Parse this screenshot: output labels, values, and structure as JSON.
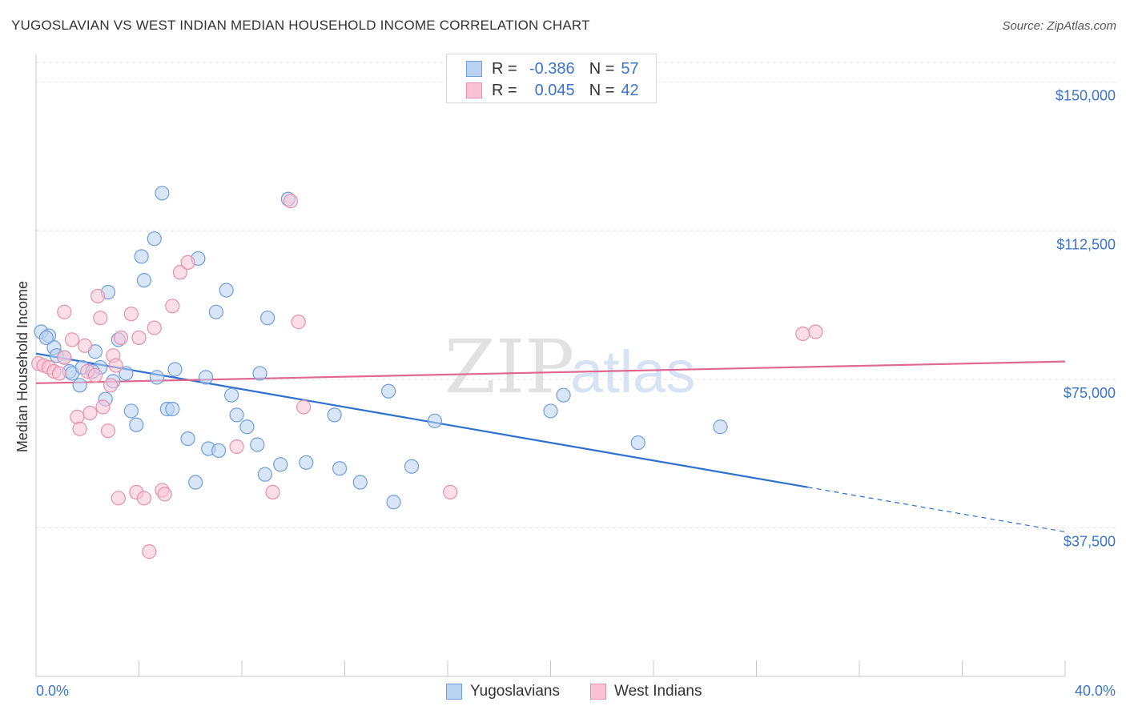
{
  "header": {
    "title": "YUGOSLAVIAN VS WEST INDIAN MEDIAN HOUSEHOLD INCOME CORRELATION CHART",
    "source": "Source: ZipAtlas.com"
  },
  "legend": {
    "rows": [
      {
        "r_label": "R =",
        "r_value": "-0.386",
        "n_label": "N =",
        "n_value": "57"
      },
      {
        "r_label": "R =",
        "r_value": "0.045",
        "n_label": "N =",
        "n_value": "42"
      }
    ]
  },
  "watermark": {
    "zip": "ZIP",
    "atlas": "atlas"
  },
  "colors": {
    "blue_fill": "#b9d1f2",
    "blue_stroke": "#6e9edc",
    "blue_line": "#2f6fce",
    "pink_fill": "#f9c3d3",
    "pink_stroke": "#e591ab",
    "pink_line": "#e0678f",
    "tick_label": "#3b74c9",
    "grid": "#e3e3e3"
  },
  "chart_data": {
    "type": "scatter",
    "title": "YUGOSLAVIAN VS WEST INDIAN MEDIAN HOUSEHOLD INCOME CORRELATION CHART",
    "xlabel": "",
    "ylabel": "Median Household Income",
    "xlim": [
      0,
      40
    ],
    "ylim": [
      0,
      155000
    ],
    "x_tick_labels": [
      "0.0%",
      "40.0%"
    ],
    "y_ticks": [
      37500,
      75000,
      112500,
      150000
    ],
    "y_tick_labels": [
      "$37,500",
      "$75,000",
      "$112,500",
      "$150,000"
    ],
    "grid": true,
    "legend_position": "top-center",
    "series": [
      {
        "name": "Yugoslavians",
        "color": "#6e9edc",
        "r": "-0.386",
        "n": "57",
        "points": [
          [
            0.2,
            87000
          ],
          [
            0.5,
            86000
          ],
          [
            0.7,
            83000
          ],
          [
            0.8,
            81000
          ],
          [
            1.3,
            77000
          ],
          [
            1.4,
            76500
          ],
          [
            1.8,
            78000
          ],
          [
            1.7,
            73500
          ],
          [
            2.3,
            82000
          ],
          [
            2.5,
            78000
          ],
          [
            2.7,
            70000
          ],
          [
            2.8,
            97000
          ],
          [
            3.0,
            74500
          ],
          [
            3.2,
            85000
          ],
          [
            3.5,
            76500
          ],
          [
            3.7,
            67000
          ],
          [
            3.9,
            63500
          ],
          [
            4.2,
            100000
          ],
          [
            4.1,
            106000
          ],
          [
            4.6,
            110500
          ],
          [
            4.7,
            75500
          ],
          [
            4.9,
            122000
          ],
          [
            5.1,
            67500
          ],
          [
            5.3,
            67500
          ],
          [
            5.4,
            77500
          ],
          [
            5.9,
            60000
          ],
          [
            6.2,
            49000
          ],
          [
            6.3,
            105500
          ],
          [
            6.6,
            75500
          ],
          [
            6.7,
            57500
          ],
          [
            7.0,
            92000
          ],
          [
            7.1,
            57000
          ],
          [
            7.4,
            97500
          ],
          [
            7.6,
            71000
          ],
          [
            7.8,
            66000
          ],
          [
            8.2,
            63000
          ],
          [
            8.6,
            58500
          ],
          [
            8.7,
            76500
          ],
          [
            8.9,
            51000
          ],
          [
            9.0,
            90500
          ],
          [
            9.5,
            53500
          ],
          [
            9.8,
            120500
          ],
          [
            10.5,
            54000
          ],
          [
            11.6,
            66000
          ],
          [
            11.8,
            52500
          ],
          [
            12.6,
            49000
          ],
          [
            13.7,
            72000
          ],
          [
            13.9,
            44000
          ],
          [
            14.6,
            53000
          ],
          [
            15.5,
            64500
          ],
          [
            20.0,
            67000
          ],
          [
            20.5,
            71000
          ],
          [
            23.4,
            59000
          ],
          [
            26.6,
            63000
          ],
          [
            0.4,
            85500
          ],
          [
            1.1,
            80500
          ],
          [
            2.2,
            77000
          ]
        ]
      },
      {
        "name": "West Indians",
        "color": "#e591ab",
        "r": "0.045",
        "n": "42",
        "points": [
          [
            0.1,
            79000
          ],
          [
            0.3,
            78500
          ],
          [
            0.5,
            78000
          ],
          [
            0.7,
            77000
          ],
          [
            0.9,
            76500
          ],
          [
            1.1,
            80500
          ],
          [
            1.1,
            92000
          ],
          [
            1.4,
            85000
          ],
          [
            1.6,
            65500
          ],
          [
            1.7,
            62500
          ],
          [
            1.9,
            83500
          ],
          [
            2.0,
            77000
          ],
          [
            2.1,
            66500
          ],
          [
            2.3,
            76000
          ],
          [
            2.4,
            96000
          ],
          [
            2.5,
            90500
          ],
          [
            2.6,
            68000
          ],
          [
            2.8,
            62000
          ],
          [
            2.9,
            73500
          ],
          [
            3.0,
            81000
          ],
          [
            3.1,
            78500
          ],
          [
            3.3,
            85500
          ],
          [
            3.2,
            45000
          ],
          [
            3.7,
            91500
          ],
          [
            3.9,
            46500
          ],
          [
            4.0,
            85500
          ],
          [
            4.2,
            45000
          ],
          [
            4.4,
            31500
          ],
          [
            4.6,
            88000
          ],
          [
            4.9,
            47000
          ],
          [
            5.0,
            46000
          ],
          [
            5.3,
            93500
          ],
          [
            5.6,
            102000
          ],
          [
            5.9,
            104500
          ],
          [
            7.8,
            58000
          ],
          [
            9.2,
            46500
          ],
          [
            9.9,
            120000
          ],
          [
            10.2,
            89500
          ],
          [
            10.4,
            68000
          ],
          [
            16.1,
            46500
          ],
          [
            29.8,
            86500
          ],
          [
            30.3,
            87000
          ]
        ]
      }
    ],
    "trend_lines": [
      {
        "series": "Yugoslavians",
        "x_start": 0,
        "y_start": 81500,
        "x_solid_end": 30,
        "x_end": 40,
        "y_end": 36500
      },
      {
        "series": "West Indians",
        "x_start": 0,
        "y_start": 74000,
        "x_end": 40,
        "y_end": 79500
      }
    ]
  },
  "bottom_legend": {
    "items": [
      {
        "label": "Yugoslavians"
      },
      {
        "label": "West Indians"
      }
    ]
  }
}
